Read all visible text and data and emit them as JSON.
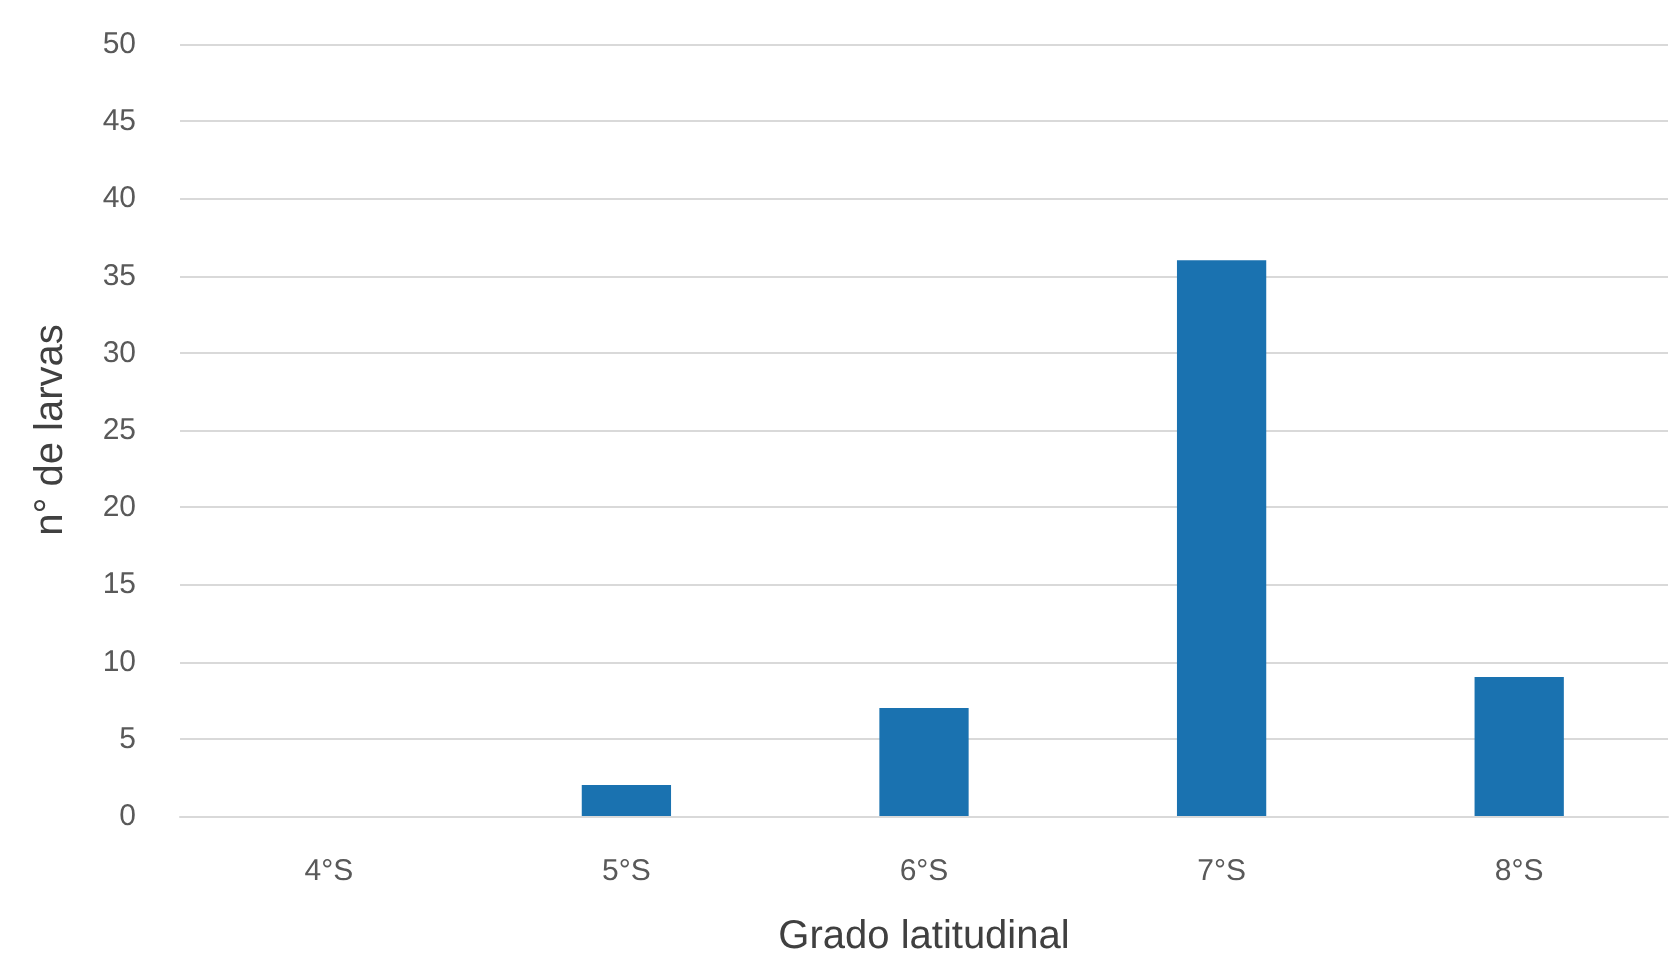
{
  "chart_data": {
    "type": "bar",
    "xlabel": "Grado latitudinal",
    "ylabel": "n° de larvas",
    "categories": [
      "4°S",
      "5°S",
      "6°S",
      "7°S",
      "8°S"
    ],
    "values": [
      0,
      2,
      7,
      36,
      9
    ],
    "color": "#1a72b0",
    "ylim": [
      0,
      50
    ],
    "yticks": [
      0,
      5,
      10,
      15,
      20,
      25,
      30,
      35,
      40,
      45,
      50
    ],
    "grid": "y"
  }
}
